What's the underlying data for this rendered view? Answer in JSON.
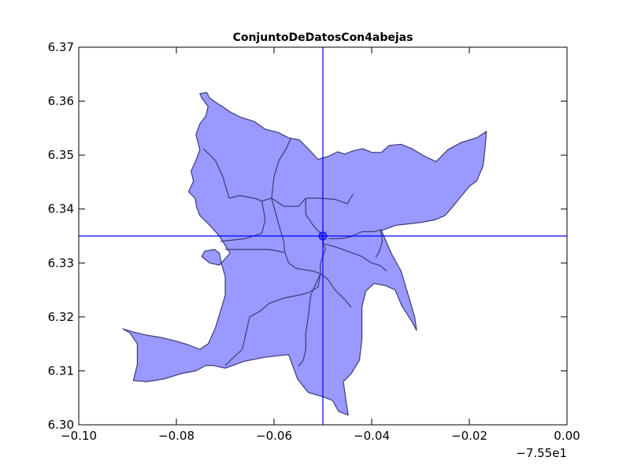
{
  "chart_data": {
    "type": "map",
    "title": "ConjuntoDeDatosCon4abejas",
    "xlabel": "",
    "ylabel": "",
    "xlim": [
      -0.1,
      0.0
    ],
    "ylim": [
      6.3,
      6.37
    ],
    "x_offset_label": "−7.55e1",
    "x_ticks": [
      -0.1,
      -0.08,
      -0.06,
      -0.04,
      -0.02,
      0.0
    ],
    "x_tick_labels": [
      "−0.10",
      "−0.08",
      "−0.06",
      "−0.04",
      "−0.02",
      "0.00"
    ],
    "y_ticks": [
      6.3,
      6.31,
      6.32,
      6.33,
      6.34,
      6.35,
      6.36,
      6.37
    ],
    "y_tick_labels": [
      "6.30",
      "6.31",
      "6.32",
      "6.33",
      "6.34",
      "6.35",
      "6.36",
      "6.37"
    ],
    "grid": false,
    "fill_color": "#9999ff",
    "edge_color": "#3b3b78",
    "crosshair_color": "#0000ff",
    "crosshair": {
      "x": -0.05,
      "y": 6.335
    },
    "marker": {
      "x": -0.05,
      "y": 6.335
    },
    "outline": [
      [
        -0.0752,
        6.3614
      ],
      [
        -0.0738,
        6.3616
      ],
      [
        -0.0732,
        6.3606
      ],
      [
        -0.072,
        6.3598
      ],
      [
        -0.0706,
        6.359
      ],
      [
        -0.069,
        6.358
      ],
      [
        -0.0668,
        6.357
      ],
      [
        -0.064,
        6.3562
      ],
      [
        -0.0618,
        6.3548
      ],
      [
        -0.0592,
        6.3542
      ],
      [
        -0.057,
        6.3532
      ],
      [
        -0.0548,
        6.3528
      ],
      [
        -0.0528,
        6.351
      ],
      [
        -0.051,
        6.3492
      ],
      [
        -0.0488,
        6.3498
      ],
      [
        -0.047,
        6.3506
      ],
      [
        -0.0455,
        6.3502
      ],
      [
        -0.0438,
        6.3508
      ],
      [
        -0.0418,
        6.3512
      ],
      [
        -0.04,
        6.3505
      ],
      [
        -0.038,
        6.3505
      ],
      [
        -0.0364,
        6.3518
      ],
      [
        -0.034,
        6.352
      ],
      [
        -0.0318,
        6.3512
      ],
      [
        -0.0292,
        6.3498
      ],
      [
        -0.0268,
        6.3488
      ],
      [
        -0.0244,
        6.351
      ],
      [
        -0.0215,
        6.3524
      ],
      [
        -0.0185,
        6.3532
      ],
      [
        -0.0165,
        6.3544
      ],
      [
        -0.0168,
        6.351
      ],
      [
        -0.0172,
        6.348
      ],
      [
        -0.0185,
        6.3452
      ],
      [
        -0.02,
        6.3442
      ],
      [
        -0.022,
        6.342
      ],
      [
        -0.0238,
        6.34
      ],
      [
        -0.025,
        6.3388
      ],
      [
        -0.027,
        6.338
      ],
      [
        -0.03,
        6.3375
      ],
      [
        -0.035,
        6.337
      ],
      [
        -0.038,
        6.336
      ],
      [
        -0.036,
        6.3318
      ],
      [
        -0.034,
        6.3285
      ],
      [
        -0.0325,
        6.324
      ],
      [
        -0.0312,
        6.32
      ],
      [
        -0.0308,
        6.3175
      ],
      [
        -0.032,
        6.3195
      ],
      [
        -0.0338,
        6.322
      ],
      [
        -0.0352,
        6.325
      ],
      [
        -0.0372,
        6.3258
      ],
      [
        -0.0395,
        6.3262
      ],
      [
        -0.0412,
        6.3248
      ],
      [
        -0.042,
        6.3218
      ],
      [
        -0.042,
        6.316
      ],
      [
        -0.0425,
        6.312
      ],
      [
        -0.0442,
        6.3095
      ],
      [
        -0.0458,
        6.308
      ],
      [
        -0.0452,
        6.304
      ],
      [
        -0.0448,
        6.3018
      ],
      [
        -0.0468,
        6.3025
      ],
      [
        -0.048,
        6.3045
      ],
      [
        -0.05,
        6.3052
      ],
      [
        -0.053,
        6.306
      ],
      [
        -0.0552,
        6.3085
      ],
      [
        -0.056,
        6.3105
      ],
      [
        -0.057,
        6.313
      ],
      [
        -0.0592,
        6.3128
      ],
      [
        -0.062,
        6.3125
      ],
      [
        -0.066,
        6.3118
      ],
      [
        -0.07,
        6.3105
      ],
      [
        -0.0725,
        6.311
      ],
      [
        -0.074,
        6.311
      ],
      [
        -0.076,
        6.31
      ],
      [
        -0.079,
        6.3095
      ],
      [
        -0.0825,
        6.3085
      ],
      [
        -0.086,
        6.308
      ],
      [
        -0.0888,
        6.3082
      ],
      [
        -0.088,
        6.3112
      ],
      [
        -0.088,
        6.315
      ],
      [
        -0.0895,
        6.317
      ],
      [
        -0.091,
        6.3178
      ],
      [
        -0.0888,
        6.3172
      ],
      [
        -0.086,
        6.3166
      ],
      [
        -0.0832,
        6.3162
      ],
      [
        -0.08,
        6.3155
      ],
      [
        -0.0775,
        6.3148
      ],
      [
        -0.0752,
        6.314
      ],
      [
        -0.0735,
        6.315
      ],
      [
        -0.072,
        6.318
      ],
      [
        -0.071,
        6.321
      ],
      [
        -0.07,
        6.324
      ],
      [
        -0.07,
        6.3275
      ],
      [
        -0.0708,
        6.33
      ],
      [
        -0.0712,
        6.3318
      ],
      [
        -0.0722,
        6.3325
      ],
      [
        -0.0742,
        6.3322
      ],
      [
        -0.0748,
        6.3312
      ],
      [
        -0.0732,
        6.33
      ],
      [
        -0.0712,
        6.3296
      ],
      [
        -0.069,
        6.3318
      ],
      [
        -0.0712,
        6.335
      ],
      [
        -0.0732,
        6.337
      ],
      [
        -0.0752,
        6.3388
      ],
      [
        -0.0758,
        6.3402
      ],
      [
        -0.0762,
        6.342
      ],
      [
        -0.0775,
        6.3432
      ],
      [
        -0.0765,
        6.3452
      ],
      [
        -0.077,
        6.347
      ],
      [
        -0.076,
        6.349
      ],
      [
        -0.0752,
        6.351
      ],
      [
        -0.076,
        6.3538
      ],
      [
        -0.0752,
        6.3558
      ],
      [
        -0.074,
        6.3572
      ],
      [
        -0.0735,
        6.359
      ],
      [
        -0.0748,
        6.3606
      ],
      [
        -0.0752,
        6.3614
      ]
    ],
    "boundaries": [
      [
        [
          -0.0745,
          6.3512
        ],
        [
          -0.072,
          6.349
        ],
        [
          -0.0705,
          6.346
        ],
        [
          -0.0692,
          6.342
        ]
      ],
      [
        [
          -0.0692,
          6.342
        ],
        [
          -0.067,
          6.3425
        ],
        [
          -0.064,
          6.342
        ],
        [
          -0.0625,
          6.3415
        ],
        [
          -0.0605,
          6.342
        ]
      ],
      [
        [
          -0.0625,
          6.3415
        ],
        [
          -0.0618,
          6.338
        ],
        [
          -0.0625,
          6.3355
        ],
        [
          -0.066,
          6.3345
        ],
        [
          -0.071,
          6.334
        ]
      ],
      [
        [
          -0.0605,
          6.342
        ],
        [
          -0.06,
          6.346
        ],
        [
          -0.059,
          6.349
        ],
        [
          -0.0575,
          6.3512
        ],
        [
          -0.0565,
          6.3532
        ]
      ],
      [
        [
          -0.0605,
          6.342
        ],
        [
          -0.058,
          6.3405
        ],
        [
          -0.055,
          6.3405
        ],
        [
          -0.0535,
          6.342
        ],
        [
          -0.0505,
          6.342
        ],
        [
          -0.0475,
          6.3418
        ],
        [
          -0.045,
          6.341
        ],
        [
          -0.0438,
          6.3428
        ]
      ],
      [
        [
          -0.0535,
          6.342
        ],
        [
          -0.0535,
          6.339
        ],
        [
          -0.052,
          6.337
        ],
        [
          -0.0505,
          6.3355
        ],
        [
          -0.0502,
          6.335
        ]
      ],
      [
        [
          -0.0605,
          6.342
        ],
        [
          -0.059,
          6.337
        ],
        [
          -0.058,
          6.334
        ],
        [
          -0.0578,
          6.332
        ],
        [
          -0.057,
          6.33
        ],
        [
          -0.0555,
          6.329
        ],
        [
          -0.052,
          6.3285
        ],
        [
          -0.0505,
          6.328
        ]
      ],
      [
        [
          -0.058,
          6.332
        ],
        [
          -0.061,
          6.3325
        ],
        [
          -0.066,
          6.3325
        ],
        [
          -0.07,
          6.3325
        ]
      ],
      [
        [
          -0.0502,
          6.335
        ],
        [
          -0.0495,
          6.3325
        ],
        [
          -0.0505,
          6.33
        ],
        [
          -0.0505,
          6.328
        ],
        [
          -0.051,
          6.3255
        ],
        [
          -0.053,
          6.3245
        ],
        [
          -0.055,
          6.324
        ],
        [
          -0.058,
          6.3235
        ],
        [
          -0.061,
          6.3225
        ],
        [
          -0.063,
          6.321
        ],
        [
          -0.065,
          6.32
        ],
        [
          -0.066,
          6.316
        ],
        [
          -0.0665,
          6.314
        ],
        [
          -0.07,
          6.311
        ]
      ],
      [
        [
          -0.0505,
          6.328
        ],
        [
          -0.049,
          6.327
        ],
        [
          -0.0475,
          6.325
        ],
        [
          -0.0455,
          6.3232
        ],
        [
          -0.0442,
          6.3218
        ]
      ],
      [
        [
          -0.0505,
          6.328
        ],
        [
          -0.0515,
          6.326
        ],
        [
          -0.0525,
          6.324
        ],
        [
          -0.053,
          6.32
        ],
        [
          -0.0535,
          6.317
        ],
        [
          -0.0535,
          6.314
        ],
        [
          -0.054,
          6.312
        ],
        [
          -0.055,
          6.3108
        ]
      ],
      [
        [
          -0.0495,
          6.3335
        ],
        [
          -0.0475,
          6.333
        ],
        [
          -0.045,
          6.3322
        ],
        [
          -0.042,
          6.3312
        ],
        [
          -0.04,
          6.33
        ],
        [
          -0.0382,
          6.3295
        ],
        [
          -0.037,
          6.3285
        ]
      ],
      [
        [
          -0.0488,
          6.3345
        ],
        [
          -0.0465,
          6.3345
        ],
        [
          -0.0445,
          6.3348
        ],
        [
          -0.042,
          6.3358
        ],
        [
          -0.0395,
          6.3358
        ],
        [
          -0.038,
          6.3362
        ]
      ],
      [
        [
          -0.0382,
          6.3362
        ],
        [
          -0.0378,
          6.334
        ],
        [
          -0.0385,
          6.332
        ],
        [
          -0.0392,
          6.331
        ]
      ]
    ]
  }
}
